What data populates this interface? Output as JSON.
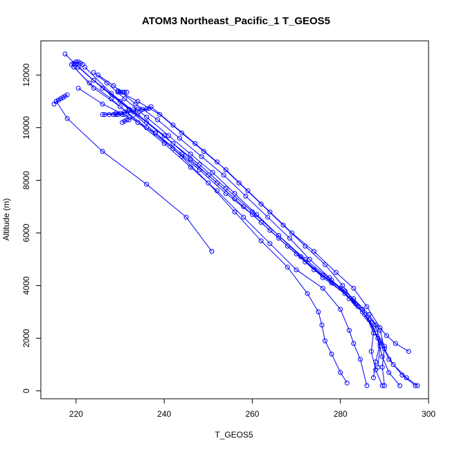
{
  "chart_data": {
    "type": "line",
    "title": "ATOM3 Northeast_Pacific_1 T_GEOS5",
    "xlabel": "T_GEOS5",
    "ylabel": "Altitude (m)",
    "xlim": [
      212,
      300
    ],
    "ylim": [
      -300,
      13300
    ],
    "x_ticks": [
      220,
      240,
      260,
      280,
      300
    ],
    "y_ticks": [
      0,
      2000,
      4000,
      6000,
      8000,
      10000,
      12000
    ],
    "series_color": "#0000ff",
    "marker": "open-circle",
    "grid": false,
    "legend": "none",
    "series": [
      {
        "x": [
          250.8,
          245.0,
          236.0,
          226.0,
          218.0,
          215.5
        ],
        "y": [
          5300,
          6600,
          7850,
          9100,
          10350,
          11000
        ]
      },
      {
        "x": [
          281.5,
          280.0,
          278.0,
          276.5,
          275.8,
          275.0,
          272.5,
          268.0,
          262.0,
          256.0,
          250.0,
          244.0,
          238.0,
          232.0,
          226.0,
          220.5
        ],
        "y": [
          300,
          700,
          1400,
          1900,
          2500,
          3000,
          3700,
          4700,
          5700,
          6800,
          7900,
          8900,
          9800,
          10400,
          10900,
          11500
        ]
      },
      {
        "x": [
          286.0,
          284.5,
          283.0,
          282.0,
          280.0,
          276.0,
          270.0,
          264.0,
          258.0,
          252.0,
          246.0,
          240.0,
          234.0,
          228.0,
          223.0,
          219.5
        ],
        "y": [
          200,
          1200,
          1800,
          2300,
          3100,
          3900,
          4600,
          5600,
          6600,
          7600,
          8500,
          9400,
          10200,
          11100,
          11700,
          12300
        ]
      },
      {
        "x": [
          289.5,
          288.0,
          287.0,
          287.5,
          286.0,
          283.0,
          278.0,
          272.0,
          266.0,
          260.0,
          254.0,
          248.0,
          242.0,
          236.0,
          230.0,
          224.0,
          219.0
        ],
        "y": [
          200,
          800,
          1500,
          2200,
          2800,
          3400,
          4100,
          4900,
          5800,
          6700,
          7500,
          8400,
          9200,
          10000,
          10800,
          11500,
          12400
        ]
      },
      {
        "x": [
          293.5,
          291.0,
          289.5,
          288.5,
          287.0,
          284.0,
          280.0,
          274.0,
          268.0,
          262.0,
          256.0,
          250.0,
          244.0,
          238.0,
          232.0,
          226.0,
          220.5,
          217.5
        ],
        "y": [
          200,
          700,
          1300,
          2000,
          2600,
          3200,
          3900,
          4600,
          5500,
          6400,
          7300,
          8200,
          9000,
          9800,
          10700,
          11500,
          12300,
          12800
        ]
      },
      {
        "x": [
          297.0,
          294.0,
          291.0,
          289.0,
          288.0,
          285.0,
          281.0,
          276.0,
          270.0,
          264.0,
          258.0,
          252.0,
          246.0,
          240.0,
          234.0,
          228.0,
          222.0
        ],
        "y": [
          200,
          600,
          1200,
          1900,
          2500,
          3100,
          3800,
          4400,
          5200,
          6100,
          7000,
          7900,
          8800,
          9700,
          10500,
          11300,
          12300
        ]
      },
      {
        "x": [
          297.5,
          295.0,
          292.0,
          290.0,
          289.0,
          286.5,
          283.0,
          278.0,
          272.0,
          266.0,
          260.0,
          254.0,
          248.0,
          242.0,
          236.0,
          230.0,
          224.0,
          220.0
        ],
        "y": [
          200,
          500,
          1000,
          1600,
          2300,
          2900,
          3500,
          4200,
          5000,
          5900,
          6800,
          7700,
          8600,
          9400,
          10200,
          11000,
          11800,
          12400
        ]
      },
      {
        "x": [
          288.5,
          289.0,
          287.5,
          285.0,
          281.0,
          276.0,
          271.0,
          266.0,
          261.0,
          256.0,
          251.0,
          246.0,
          241.0,
          236.0,
          231.0,
          227.0,
          224.0
        ],
        "y": [
          900,
          1700,
          2400,
          3000,
          3700,
          4300,
          5100,
          5900,
          6700,
          7500,
          8300,
          9000,
          9700,
          10400,
          11100,
          11700,
          12100
        ]
      },
      {
        "x": [
          295.5,
          292.5,
          290.5,
          289.0,
          286.0,
          283.0,
          279.0,
          274.0,
          269.0,
          264.0,
          259.0,
          254.0,
          249.0,
          244.0,
          239.0,
          234.0,
          229.5
        ],
        "y": [
          1500,
          1800,
          2100,
          2400,
          3200,
          3900,
          4500,
          5300,
          6000,
          6800,
          7600,
          8400,
          9100,
          9800,
          10500,
          11000,
          11400
        ]
      },
      {
        "x": [
          287.5,
          288.0,
          289.0,
          286.5,
          283.5,
          280.5,
          276.5,
          272.0,
          267.0,
          262.0,
          257.0,
          252.0,
          247.0,
          242.0,
          237.0,
          232.0
        ],
        "y": [
          500,
          1100,
          1800,
          2700,
          3300,
          4000,
          4800,
          5500,
          6300,
          7100,
          7900,
          8700,
          9400,
          10100,
          10800,
          10300
        ]
      },
      {
        "x": [
          290.0,
          289.5,
          290.0,
          288.0,
          285.5,
          282.0,
          277.5,
          273.0,
          268.5,
          263.5,
          258.5,
          253.5,
          248.5,
          243.5,
          238.5,
          233.5,
          228.5,
          225.0
        ],
        "y": [
          200,
          900,
          1700,
          2200,
          2900,
          3500,
          4300,
          5000,
          5800,
          6600,
          7400,
          8200,
          8900,
          9600,
          10300,
          10900,
          11600,
          12000
        ]
      },
      {
        "x": [
          229.0,
          230.0,
          231.0,
          232.0,
          233.0,
          234.0,
          235.0,
          236.0,
          236.5,
          233.0,
          229.0,
          226.0
        ],
        "y": [
          10500,
          10550,
          10600,
          10650,
          10680,
          10700,
          10700,
          10720,
          10730,
          10600,
          10550,
          10500
        ]
      },
      {
        "x": [
          215.0,
          215.5,
          216.0,
          216.5,
          217.0,
          217.5,
          218.0
        ],
        "y": [
          10900,
          11000,
          11050,
          11100,
          11150,
          11200,
          11250
        ]
      },
      {
        "x": [
          226.5,
          227.5,
          228.5,
          229.5,
          230.5,
          231.0
        ],
        "y": [
          10500,
          10500,
          10500,
          10500,
          10500,
          10500
        ]
      },
      {
        "x": [
          229.5,
          230.0,
          230.5,
          231.0,
          231.5
        ],
        "y": [
          11350,
          11350,
          11350,
          11350,
          11350
        ]
      },
      {
        "x": [
          230.5,
          231.0,
          231.5
        ],
        "y": [
          10200,
          10250,
          10300
        ]
      },
      {
        "x": [
          219.0,
          219.5,
          220.0,
          220.5,
          221.0,
          221.5
        ],
        "y": [
          12400,
          12450,
          12500,
          12500,
          12450,
          12400
        ]
      }
    ]
  }
}
